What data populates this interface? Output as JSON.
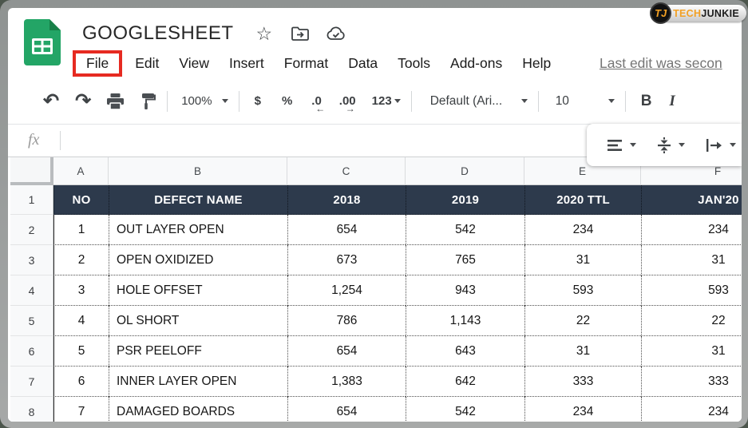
{
  "window": {
    "title": "GOOGLESHEET"
  },
  "titlebar_icons": {
    "star": "star",
    "move_folder": "folder-move",
    "cloud": "cloud-check"
  },
  "menu": {
    "items": [
      "File",
      "Edit",
      "View",
      "Insert",
      "Format",
      "Data",
      "Tools",
      "Add-ons",
      "Help"
    ],
    "last_edit": "Last edit was secon"
  },
  "toolbar": {
    "zoom": "100%",
    "currency": "$",
    "percent": "%",
    "decrease_decimal": ".0",
    "decrease_arrow": "←",
    "increase_decimal": ".00",
    "increase_arrow": "→",
    "more_formats": "123",
    "font": "Default (Ari...",
    "font_size": "10",
    "bold": "B",
    "italic": "I"
  },
  "formula_bar": {
    "label": "fx",
    "value": ""
  },
  "watermark": {
    "monogram": "TJ",
    "tech": "TECH",
    "junkie": "JUNKIE"
  },
  "sheet": {
    "column_letters": [
      "A",
      "B",
      "C",
      "D",
      "E",
      "F"
    ],
    "row_numbers": [
      "1",
      "2",
      "3",
      "4",
      "5",
      "6",
      "7",
      "8"
    ],
    "header": [
      "NO",
      "DEFECT NAME",
      "2018",
      "2019",
      "2020 TTL",
      "JAN'20"
    ],
    "rows": [
      [
        "1",
        "OUT LAYER OPEN",
        "654",
        "542",
        "234",
        "234"
      ],
      [
        "2",
        "OPEN OXIDIZED",
        "673",
        "765",
        "31",
        "31"
      ],
      [
        "3",
        "HOLE OFFSET",
        "1,254",
        "943",
        "593",
        "593"
      ],
      [
        "4",
        "OL SHORT",
        "786",
        "1,143",
        "22",
        "22"
      ],
      [
        "5",
        "PSR PEELOFF",
        "654",
        "643",
        "31",
        "31"
      ],
      [
        "6",
        "INNER LAYER OPEN",
        "1,383",
        "642",
        "333",
        "333"
      ],
      [
        "7",
        "DAMAGED BOARDS",
        "654",
        "542",
        "234",
        "234"
      ]
    ]
  },
  "colors": {
    "table_header_bg": "#2d3a4c",
    "highlight_red": "#e62a21",
    "sheets_green": "#23a566",
    "tj_orange": "#f2a024"
  }
}
